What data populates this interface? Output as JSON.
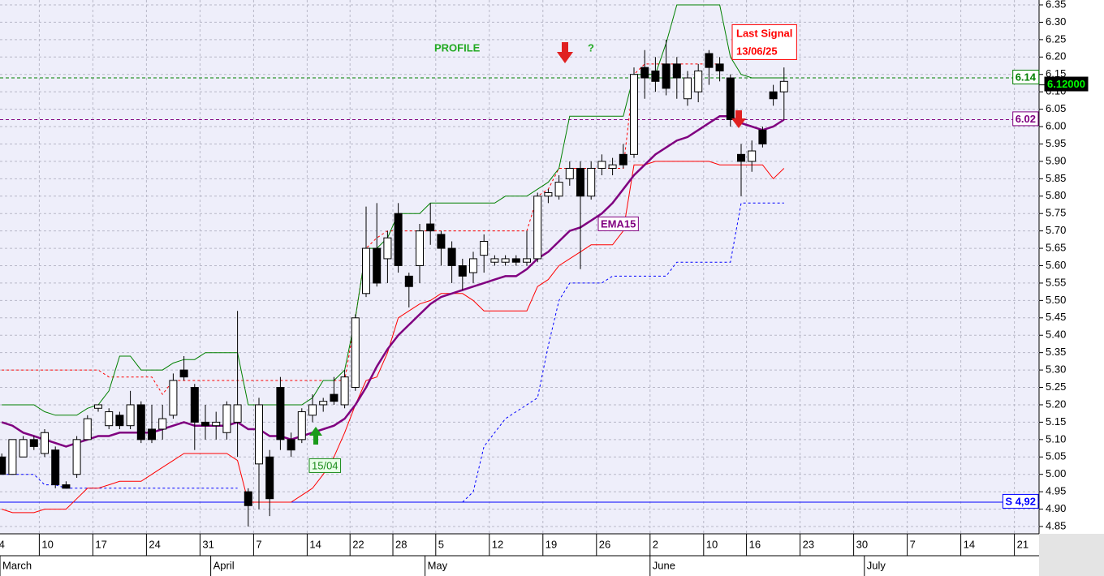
{
  "chart_data": {
    "type": "candlestick",
    "categories": [
      "4",
      null,
      null,
      null,
      "10",
      null,
      null,
      null,
      null,
      "17",
      null,
      null,
      null,
      null,
      "24",
      null,
      null,
      null,
      null,
      "31",
      null,
      null,
      null,
      null,
      "7",
      null,
      null,
      null,
      null,
      "14",
      null,
      null,
      null,
      "22",
      null,
      null,
      null,
      "28",
      null,
      null,
      null,
      "5",
      null,
      null,
      null,
      null,
      "12",
      null,
      null,
      null,
      null,
      "19",
      null,
      null,
      null,
      null,
      "26",
      null,
      null,
      null,
      null,
      "2",
      null,
      null,
      null,
      null,
      "10",
      null,
      null,
      null,
      "16",
      null,
      null,
      null,
      null,
      "23",
      null,
      null,
      null,
      null,
      "30",
      null,
      null,
      null,
      null,
      "7",
      null,
      null,
      null,
      null,
      "14",
      null,
      null,
      null,
      null,
      "21",
      null
    ],
    "months": [
      "March",
      "April",
      "May",
      "June",
      "July"
    ],
    "ohlc": {
      "up_color": "#ffffff",
      "down_color": "#000000",
      "open": [
        5.05,
        5.0,
        5.05,
        5.1,
        5.06,
        5.07,
        4.97,
        5.0,
        5.1,
        5.19,
        5.14,
        5.17,
        5.14,
        5.2,
        5.13,
        5.13,
        5.17,
        5.3,
        5.25,
        5.15,
        5.14,
        5.12,
        5.15,
        4.95,
        5.03,
        5.05,
        5.25,
        5.1,
        5.1,
        5.17,
        5.2,
        5.23,
        5.2,
        5.25,
        5.52,
        5.65,
        5.62,
        5.75,
        5.57,
        5.6,
        5.72,
        5.69,
        5.65,
        5.6,
        5.58,
        5.63,
        5.61,
        5.61,
        5.62,
        5.61,
        5.62,
        5.8,
        5.8,
        5.85,
        5.88,
        5.8,
        5.88,
        5.88,
        5.92,
        5.92,
        6.17,
        6.16,
        6.18,
        6.18,
        6.08,
        6.1,
        6.21,
        6.18,
        6.14,
        5.92,
        5.9,
        5.99,
        6.1,
        6.1,
        null,
        null,
        null,
        null,
        null,
        null,
        null,
        null,
        null,
        null,
        null,
        null,
        null,
        null,
        null,
        null,
        null,
        null,
        null,
        null,
        null,
        null,
        null
      ],
      "high": [
        5.06,
        5.1,
        5.11,
        5.11,
        5.13,
        5.08,
        4.98,
        5.11,
        5.17,
        5.2,
        5.19,
        5.18,
        5.24,
        5.21,
        5.2,
        5.2,
        5.29,
        5.34,
        5.26,
        5.2,
        5.18,
        5.21,
        5.47,
        4.96,
        5.22,
        5.07,
        5.28,
        5.12,
        5.19,
        5.23,
        5.22,
        5.28,
        5.3,
        5.46,
        5.77,
        5.78,
        5.7,
        5.78,
        5.58,
        5.72,
        5.78,
        5.7,
        5.67,
        5.62,
        5.64,
        5.69,
        5.63,
        5.63,
        5.63,
        5.7,
        5.81,
        5.82,
        5.86,
        5.9,
        5.9,
        5.9,
        5.92,
        5.91,
        5.95,
        6.17,
        6.22,
        6.2,
        6.25,
        6.2,
        6.16,
        6.18,
        6.22,
        6.2,
        6.15,
        5.95,
        5.96,
        6.0,
        6.12,
        6.17,
        null,
        null,
        null,
        null,
        null,
        null,
        null,
        null,
        null,
        null,
        null,
        null,
        null,
        null,
        null,
        null,
        null,
        null,
        null,
        null,
        null,
        null,
        null
      ],
      "low": [
        5.0,
        5.0,
        5.05,
        5.07,
        5.05,
        4.96,
        4.96,
        4.99,
        5.1,
        5.18,
        5.13,
        5.13,
        5.13,
        5.09,
        5.09,
        5.1,
        5.16,
        5.27,
        5.07,
        5.1,
        5.1,
        5.1,
        5.05,
        4.85,
        4.9,
        4.88,
        5.07,
        5.05,
        5.09,
        5.15,
        5.18,
        5.2,
        5.19,
        5.24,
        5.51,
        5.54,
        5.55,
        5.58,
        5.48,
        5.55,
        5.66,
        5.6,
        5.55,
        5.53,
        5.55,
        5.58,
        5.6,
        5.6,
        5.6,
        5.6,
        5.61,
        5.78,
        5.79,
        5.83,
        5.59,
        5.79,
        5.86,
        5.86,
        5.88,
        5.91,
        6.08,
        6.1,
        6.09,
        6.08,
        6.06,
        6.07,
        6.12,
        6.13,
        6.0,
        5.8,
        5.87,
        5.94,
        6.06,
        6.02,
        null,
        null,
        null,
        null,
        null,
        null,
        null,
        null,
        null,
        null,
        null,
        null,
        null,
        null,
        null,
        null,
        null,
        null,
        null,
        null,
        null,
        null,
        null
      ],
      "close": [
        5.0,
        5.1,
        5.1,
        5.08,
        5.12,
        4.97,
        4.96,
        5.1,
        5.16,
        5.2,
        5.18,
        5.14,
        5.2,
        5.1,
        5.1,
        5.16,
        5.27,
        5.28,
        5.15,
        5.14,
        5.15,
        5.2,
        5.2,
        4.91,
        5.2,
        4.93,
        5.1,
        5.07,
        5.18,
        5.2,
        5.21,
        5.21,
        5.28,
        5.45,
        5.65,
        5.55,
        5.68,
        5.6,
        5.54,
        5.7,
        5.7,
        5.65,
        5.6,
        5.57,
        5.62,
        5.67,
        5.62,
        5.62,
        5.61,
        5.62,
        5.8,
        5.81,
        5.84,
        5.88,
        5.8,
        5.88,
        5.9,
        5.89,
        5.89,
        6.15,
        6.14,
        6.13,
        6.11,
        6.14,
        6.14,
        6.16,
        6.17,
        6.16,
        6.02,
        5.9,
        5.93,
        5.95,
        6.08,
        6.13,
        null,
        null,
        null,
        null,
        null,
        null,
        null,
        null,
        null,
        null,
        null,
        null,
        null,
        null,
        null,
        null,
        null,
        null,
        null,
        null,
        null,
        null,
        null
      ]
    },
    "series": [
      {
        "color": "#ff0000",
        "dash": true,
        "width": 1,
        "values": [
          5.3,
          5.3,
          5.3,
          5.3,
          5.3,
          5.3,
          5.3,
          5.3,
          5.3,
          5.3,
          5.28,
          5.28,
          5.28,
          5.28,
          5.28,
          5.23,
          5.27,
          5.27,
          5.27,
          5.27,
          5.27,
          5.27,
          5.27,
          5.27,
          5.27,
          5.27,
          5.27,
          5.27,
          5.27,
          5.27,
          5.27,
          5.27,
          5.27,
          5.45,
          5.65,
          5.68,
          5.7,
          5.7,
          5.7,
          5.7,
          5.7,
          5.7,
          5.7,
          5.7,
          5.7,
          5.7,
          5.7,
          5.7,
          5.7,
          5.7,
          5.8,
          5.82,
          5.88,
          5.88,
          5.88,
          5.88,
          5.88,
          5.88,
          5.88,
          6.15,
          6.18,
          6.18,
          6.18,
          6.18,
          6.18,
          6.18,
          6.18,
          6.18,
          null,
          null,
          null,
          null,
          null,
          null,
          null,
          null,
          null,
          null,
          null,
          null,
          null,
          null,
          null,
          null,
          null,
          null,
          null,
          null,
          null,
          null,
          null,
          null,
          null,
          null,
          null,
          null,
          null
        ]
      },
      {
        "color": "#0000ff",
        "dash": true,
        "width": 1,
        "values": [
          5.0,
          5.0,
          5.0,
          5.0,
          4.97,
          4.97,
          4.96,
          4.96,
          4.96,
          4.96,
          4.96,
          4.96,
          4.96,
          4.96,
          4.96,
          4.96,
          4.96,
          4.96,
          4.96,
          4.96,
          4.96,
          4.96,
          4.96,
          null,
          null,
          null,
          null,
          null,
          null,
          null,
          null,
          null,
          null,
          null,
          null,
          null,
          null,
          null,
          null,
          null,
          null,
          null,
          null,
          4.92,
          4.95,
          5.08,
          5.12,
          5.16,
          5.18,
          5.2,
          5.22,
          5.37,
          5.5,
          5.55,
          5.55,
          5.55,
          5.55,
          5.57,
          5.57,
          5.57,
          5.57,
          5.57,
          5.57,
          5.61,
          5.61,
          5.61,
          5.61,
          5.61,
          5.61,
          5.78,
          5.78,
          5.78,
          5.78,
          5.78,
          null,
          null,
          null,
          null,
          null,
          null,
          null,
          null,
          null,
          null,
          null,
          null,
          null,
          null,
          null,
          null,
          null,
          null,
          null,
          null,
          null,
          null,
          null
        ]
      },
      {
        "color": "#008000",
        "dash": false,
        "width": 1,
        "values": [
          5.2,
          5.2,
          5.2,
          5.2,
          5.18,
          5.17,
          5.17,
          5.17,
          5.19,
          5.2,
          5.24,
          5.34,
          5.34,
          5.3,
          5.3,
          5.3,
          5.32,
          5.33,
          5.33,
          5.35,
          5.35,
          5.35,
          5.35,
          5.2,
          5.2,
          5.2,
          5.2,
          5.2,
          5.2,
          5.22,
          5.27,
          5.27,
          5.3,
          5.45,
          5.65,
          5.65,
          5.68,
          5.75,
          5.75,
          5.75,
          5.78,
          5.78,
          5.78,
          5.78,
          5.78,
          5.78,
          5.78,
          5.8,
          5.8,
          5.8,
          5.82,
          5.84,
          5.88,
          6.03,
          6.03,
          6.03,
          6.03,
          6.03,
          6.03,
          6.15,
          6.15,
          6.15,
          6.24,
          6.35,
          6.35,
          6.35,
          6.35,
          6.35,
          6.2,
          6.15,
          6.14,
          6.14,
          6.14,
          6.14,
          null,
          null,
          null,
          null,
          null,
          null,
          null,
          null,
          null,
          null,
          null,
          null,
          null,
          null,
          null,
          null,
          null,
          null,
          null,
          null,
          null,
          null,
          null
        ]
      },
      {
        "color": "#ff0000",
        "dash": false,
        "width": 1,
        "values": [
          4.9,
          4.89,
          4.89,
          4.89,
          4.9,
          4.9,
          4.9,
          4.93,
          4.96,
          4.96,
          4.97,
          4.98,
          4.98,
          4.98,
          5.0,
          5.02,
          5.04,
          5.06,
          5.06,
          5.06,
          5.06,
          5.06,
          5.04,
          4.92,
          4.92,
          4.92,
          4.92,
          4.92,
          4.94,
          4.96,
          5.0,
          5.05,
          5.12,
          5.2,
          5.27,
          5.28,
          5.35,
          5.45,
          5.47,
          5.49,
          5.5,
          5.52,
          5.52,
          5.52,
          5.5,
          5.47,
          5.47,
          5.47,
          5.47,
          5.47,
          5.54,
          5.56,
          5.6,
          5.62,
          5.64,
          5.66,
          5.66,
          5.66,
          5.7,
          5.89,
          5.89,
          5.9,
          5.9,
          5.9,
          5.9,
          5.9,
          5.9,
          5.89,
          5.89,
          5.89,
          5.89,
          5.89,
          5.85,
          5.88,
          null,
          null,
          null,
          null,
          null,
          null,
          null,
          null,
          null,
          null,
          null,
          null,
          null,
          null,
          null,
          null,
          null,
          null,
          null,
          null,
          null,
          null,
          null
        ]
      },
      {
        "name": "EMA15",
        "color": "#800080",
        "dash": false,
        "width": 2.5,
        "values": [
          5.15,
          5.14,
          5.12,
          5.11,
          5.1,
          5.09,
          5.08,
          5.09,
          5.1,
          5.11,
          5.11,
          5.12,
          5.12,
          5.12,
          5.12,
          5.13,
          5.14,
          5.15,
          5.14,
          5.14,
          5.14,
          5.14,
          5.15,
          5.13,
          5.13,
          5.11,
          5.11,
          5.1,
          5.11,
          5.12,
          5.13,
          5.14,
          5.16,
          5.2,
          5.25,
          5.31,
          5.36,
          5.4,
          5.43,
          5.46,
          5.49,
          5.51,
          5.52,
          5.53,
          5.54,
          5.55,
          5.56,
          5.57,
          5.57,
          5.59,
          5.62,
          5.64,
          5.67,
          5.7,
          5.71,
          5.73,
          5.75,
          5.78,
          5.82,
          5.86,
          5.89,
          5.92,
          5.94,
          5.96,
          5.97,
          5.99,
          6.01,
          6.03,
          6.03,
          6.01,
          6.0,
          5.99,
          6.0,
          6.02,
          null,
          null,
          null,
          null,
          null,
          null,
          null,
          null,
          null,
          null,
          null,
          null,
          null,
          null,
          null,
          null,
          null,
          null,
          null,
          null,
          null,
          null,
          null
        ]
      }
    ],
    "hlines": [
      {
        "value": 6.14,
        "label": "6.14",
        "color": "#008000",
        "dash": true
      },
      {
        "value": 6.02,
        "label": "6.02",
        "color": "#800080",
        "dash": true
      },
      {
        "value": 4.92,
        "label": "S 4,92",
        "color": "#0000ff",
        "dash": false
      }
    ],
    "last_price": {
      "value": 6.12,
      "label": "6.12000"
    },
    "annotations": {
      "profile": "PROFILE",
      "question": "?",
      "last_signal": "Last Signal",
      "signal_date": "13/06/25",
      "buy_date": "15/04"
    },
    "ylim": [
      4.829,
      6.364
    ],
    "yticks": [
      4.85,
      {
        "value": 4.9,
        "label": "4.90"
      },
      4.95,
      {
        "value": 5,
        "label": "5.00"
      },
      5.05,
      {
        "value": 5.1,
        "label": "5.10"
      },
      5.15,
      {
        "value": 5.2,
        "label": "5.20"
      },
      5.25,
      {
        "value": 5.3,
        "label": "5.30"
      },
      5.35,
      {
        "value": 5.4,
        "label": "5.40"
      },
      5.45,
      {
        "value": 5.5,
        "label": "5.50"
      },
      5.55,
      {
        "value": 5.6,
        "label": "5.60"
      },
      5.65,
      {
        "value": 5.7,
        "label": "5.70"
      },
      5.75,
      {
        "value": 5.8,
        "label": "5.80"
      },
      5.85,
      {
        "value": 5.9,
        "label": "5.90"
      },
      5.95,
      {
        "value": 6,
        "label": "6.00"
      },
      6.05,
      {
        "value": 6.1,
        "label": "6.10"
      },
      6.15,
      {
        "value": 6.2,
        "label": "6.20"
      },
      6.25,
      {
        "value": 6.3,
        "label": "6.30"
      },
      6.35
    ],
    "grid": true
  }
}
